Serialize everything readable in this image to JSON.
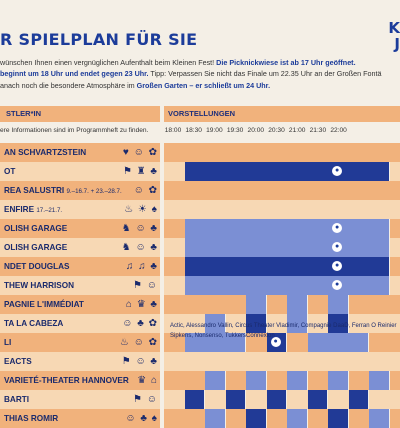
{
  "title": "R SPIELPLAN FÜR SIE",
  "brand": "K J",
  "intro": {
    "line1_a": "wünschen Ihnen einen vergnüglichen Aufenthalt beim Kleinen Fest! ",
    "line1_b": "Die Picknickwiese ist ab 17 Uhr geöffnet.",
    "line2_a": "beginnt um 18 Uhr und endet gegen 23 Uhr.",
    "line2_b": " Tipp: Verpassen Sie nicht das Finale um 22.35 Uhr an der Großen Fontä",
    "line3_a": "anach noch die besondere Atmosphäre im ",
    "line3_b": "Großen Garten – er schließt um 24 Uhr."
  },
  "table_header": {
    "left": "STLER*IN",
    "right": "VORSTELLUNGEN"
  },
  "subnote": "ere Informationen sind im Programmheft zu finden.",
  "times": [
    "18:00",
    "18:30",
    "19:00",
    "19:30",
    "20:00",
    "20:30",
    "21:00",
    "21:30",
    "22:00"
  ],
  "colors": {
    "dark": "#213a96",
    "mid": "#7b8fd4",
    "orange": "#f1b27c",
    "cream": "#f7d8b4"
  },
  "rows": [
    {
      "name": "AN SCHVARTZSTEIN",
      "dates": "",
      "icons": "♥ ☺ ✿",
      "pattern": "empty",
      "dot": null
    },
    {
      "name": "OT",
      "dates": "",
      "icons": "⚑ ♜ ♣",
      "pattern": "dark_full",
      "dot": 8
    },
    {
      "name": "REA SALUSTRI",
      "dates": "9.–16.7. + 23.–28.7.",
      "icons": "☺ ✿",
      "pattern": "empty",
      "dot": null
    },
    {
      "name": "ENFIRE",
      "dates": "17.–21.7.",
      "icons": "♨ ☀ ♠",
      "pattern": "empty",
      "dot": null
    },
    {
      "name": "OLISH GARAGE",
      "dates": "",
      "icons": "♞ ☺ ♣",
      "pattern": "mid_full",
      "dot": 8
    },
    {
      "name": "OLISH GARAGE",
      "dates": "",
      "icons": "♞ ☺ ♣",
      "pattern": "mid_full",
      "dot": 8
    },
    {
      "name": "NDET DOUGLAS",
      "dates": "",
      "icons": "♫ ♫ ♣",
      "pattern": "dark_full",
      "dot": 8
    },
    {
      "name": "THEW HARRISON",
      "dates": "",
      "icons": "⚑ ☺",
      "pattern": "mid_full",
      "dot": 8
    },
    {
      "name": "PAGNIE L'IMMÉDIAT",
      "dates": "",
      "icons": "⌂ ♛ ♣",
      "pattern": "blocks1",
      "dot": null
    },
    {
      "name": "TA LA CABEZA",
      "dates": "",
      "icons": "☺ ♣ ✿",
      "pattern": "blocks2",
      "dot": null
    },
    {
      "name": "LI",
      "dates": "",
      "icons": "♨ ☺ ✿",
      "pattern": "blocks3",
      "dot": 5
    },
    {
      "name": "EACTS",
      "dates": "",
      "icons": "⚑ ☺ ♣",
      "pattern": "names",
      "dot": null
    },
    {
      "name": "VARIETÉ-THEATER HANNOVER",
      "dates": "",
      "icons": "♛ ⌂",
      "pattern": "blocks4",
      "dot": null
    },
    {
      "name": "BARTI",
      "dates": "",
      "icons": "⚑ ☺",
      "pattern": "blocks5",
      "dot": null
    },
    {
      "name": "THIAS ROMIR",
      "dates": "",
      "icons": "☺ ♣ ♠",
      "pattern": "blocks6",
      "dot": null
    }
  ],
  "names_note": "Actic, Alessandro Vallin, Circus Theater Vladimir, Compagnie DaaD, Ferran O Reinier Sipkens, Nonsenso, TukkersConnexion"
}
